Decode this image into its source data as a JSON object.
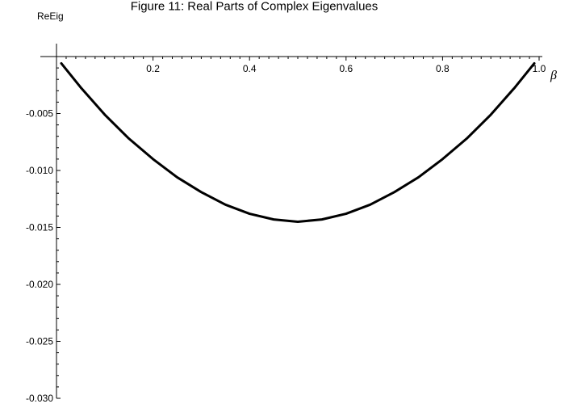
{
  "chart_data": {
    "type": "line",
    "title": "Figure 11: Real Parts of Complex Eigenvalues",
    "xlabel": "β",
    "ylabel": "ReEig",
    "xlim": [
      0,
      1.0
    ],
    "ylim": [
      -0.03,
      0
    ],
    "x_ticks": [
      {
        "value": 0.2,
        "label": "0.2"
      },
      {
        "value": 0.4,
        "label": "0.4"
      },
      {
        "value": 0.6,
        "label": "0.6"
      },
      {
        "value": 0.8,
        "label": "0.8"
      },
      {
        "value": 1.0,
        "label": "1.0"
      }
    ],
    "y_ticks": [
      {
        "value": -0.005,
        "label": "-0.005"
      },
      {
        "value": -0.01,
        "label": "-0.010"
      },
      {
        "value": -0.015,
        "label": "-0.015"
      },
      {
        "value": -0.02,
        "label": "-0.020"
      },
      {
        "value": -0.025,
        "label": "-0.025"
      },
      {
        "value": -0.03,
        "label": "-0.030"
      }
    ],
    "grid": false,
    "series": [
      {
        "color": "#000000",
        "x": [
          0.01,
          0.05,
          0.1,
          0.15,
          0.2,
          0.25,
          0.3,
          0.35,
          0.4,
          0.45,
          0.5,
          0.55,
          0.6,
          0.65,
          0.7,
          0.75,
          0.8,
          0.85,
          0.9,
          0.95,
          0.99
        ],
        "y": [
          -0.0006,
          -0.0027,
          -0.0051,
          -0.0072,
          -0.009,
          -0.0106,
          -0.0119,
          -0.013,
          -0.0138,
          -0.0143,
          -0.0145,
          -0.0143,
          -0.0138,
          -0.013,
          -0.0119,
          -0.0106,
          -0.009,
          -0.0072,
          -0.0051,
          -0.0027,
          -0.0006
        ]
      }
    ]
  }
}
